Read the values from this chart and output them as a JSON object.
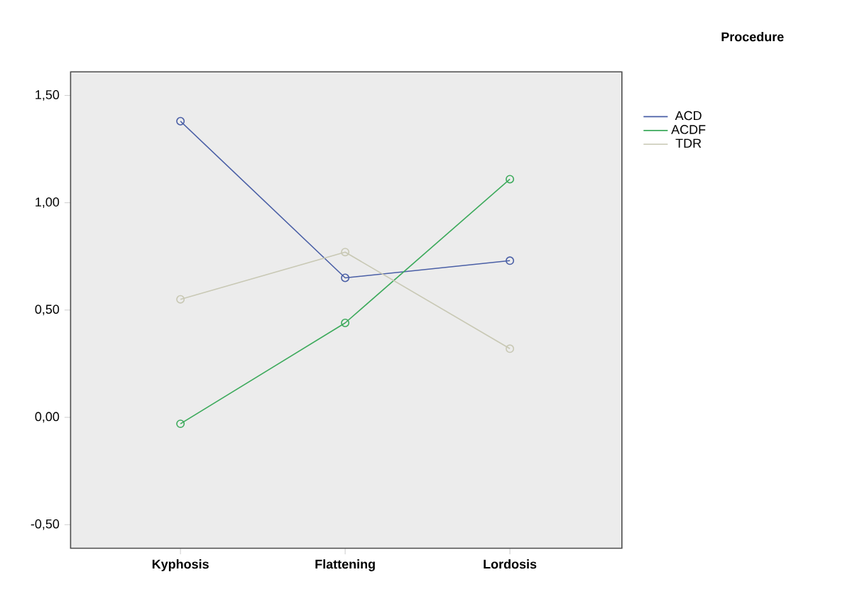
{
  "chart_data": {
    "type": "line",
    "categories": [
      "Kyphosis",
      "Flattening",
      "Lordosis"
    ],
    "series": [
      {
        "name": "ACD",
        "color": "#4a5fa6",
        "values": [
          1.38,
          0.65,
          0.73
        ]
      },
      {
        "name": "ACDF",
        "color": "#3daa5c",
        "values": [
          -0.03,
          0.44,
          1.11
        ]
      },
      {
        "name": "TDR",
        "color": "#c8c8b4",
        "values": [
          0.55,
          0.77,
          0.32
        ]
      }
    ],
    "ylim": [
      -0.61,
      1.61
    ],
    "yticks": [
      {
        "value": -0.5,
        "label": "-0,50"
      },
      {
        "value": 0,
        "label": "0,00"
      },
      {
        "value": 0.5,
        "label": "0,50"
      },
      {
        "value": 1,
        "label": "1,00"
      },
      {
        "value": 1.5,
        "label": "1,50"
      }
    ],
    "legend_title": "Procedure",
    "legend": "right",
    "marker": "circle",
    "line_style": "solid",
    "grid": false
  }
}
